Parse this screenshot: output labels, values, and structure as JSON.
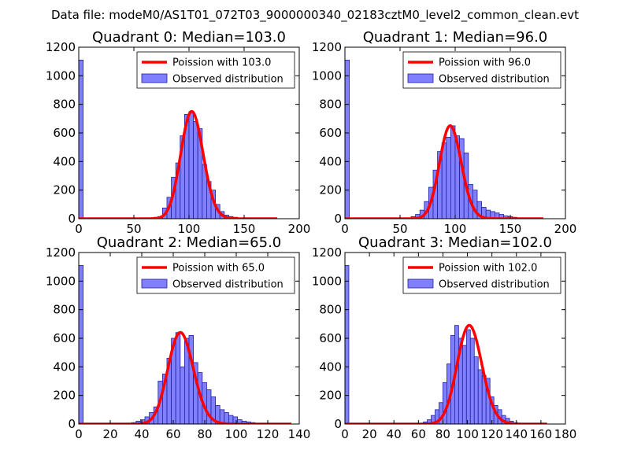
{
  "suptitle": "Data file: modeM0/AS1T01_072T03_9000000340_02183cztM0_level2_common_clean.evt",
  "colors": {
    "bar_fill": "#8080ff",
    "bar_edge": "#2020a0",
    "fit_line": "#ff0000"
  },
  "chart_data": [
    {
      "type": "bar",
      "title": "Quadrant 0: Median=103.0",
      "xlim": [
        0,
        200
      ],
      "ylim": [
        0,
        1200
      ],
      "xticks": [
        0,
        50,
        100,
        150,
        200
      ],
      "yticks": [
        0,
        200,
        400,
        600,
        800,
        1000,
        1200
      ],
      "legend_position": "upper right",
      "fit_label": "Poission with 103.0",
      "hist_label": "Observed distribution",
      "median": 103.0,
      "bin_width": 4,
      "bins": [
        [
          0,
          1110
        ],
        [
          64,
          5
        ],
        [
          68,
          10
        ],
        [
          72,
          15
        ],
        [
          76,
          75
        ],
        [
          80,
          150
        ],
        [
          84,
          290
        ],
        [
          88,
          390
        ],
        [
          92,
          580
        ],
        [
          96,
          730
        ],
        [
          100,
          750
        ],
        [
          104,
          680
        ],
        [
          108,
          630
        ],
        [
          112,
          380
        ],
        [
          116,
          260
        ],
        [
          120,
          200
        ],
        [
          124,
          100
        ],
        [
          128,
          50
        ],
        [
          132,
          25
        ],
        [
          136,
          15
        ],
        [
          140,
          10
        ],
        [
          144,
          5
        ],
        [
          148,
          3
        ]
      ],
      "fit_x_range": [
        0,
        180
      ]
    },
    {
      "type": "bar",
      "title": "Quadrant 1: Median=96.0",
      "xlim": [
        0,
        200
      ],
      "ylim": [
        0,
        1200
      ],
      "xticks": [
        0,
        50,
        100,
        150,
        200
      ],
      "yticks": [
        0,
        200,
        400,
        600,
        800,
        1000,
        1200
      ],
      "legend_position": "upper right",
      "fit_label": "Poission with 96.0",
      "hist_label": "Observed distribution",
      "median": 96.0,
      "bin_width": 4,
      "bins": [
        [
          0,
          1110
        ],
        [
          56,
          5
        ],
        [
          60,
          15
        ],
        [
          64,
          30
        ],
        [
          68,
          60
        ],
        [
          72,
          120
        ],
        [
          76,
          220
        ],
        [
          80,
          340
        ],
        [
          84,
          470
        ],
        [
          88,
          530
        ],
        [
          92,
          570
        ],
        [
          96,
          650
        ],
        [
          100,
          580
        ],
        [
          104,
          560
        ],
        [
          108,
          460
        ],
        [
          112,
          240
        ],
        [
          116,
          200
        ],
        [
          120,
          120
        ],
        [
          124,
          80
        ],
        [
          128,
          60
        ],
        [
          132,
          50
        ],
        [
          136,
          40
        ],
        [
          140,
          30
        ],
        [
          144,
          20
        ],
        [
          148,
          15
        ],
        [
          152,
          10
        ],
        [
          156,
          5
        ]
      ],
      "fit_x_range": [
        0,
        180
      ]
    },
    {
      "type": "bar",
      "title": "Quadrant 2: Median=65.0",
      "xlim": [
        0,
        140
      ],
      "ylim": [
        0,
        1200
      ],
      "xticks": [
        0,
        20,
        40,
        60,
        80,
        100,
        120,
        140
      ],
      "yticks": [
        0,
        200,
        400,
        600,
        800,
        1000,
        1200
      ],
      "legend_position": "upper right",
      "fit_label": "Poission with 65.0",
      "hist_label": "Observed distribution",
      "median": 65.0,
      "bin_width": 2.8,
      "bins": [
        [
          0,
          1110
        ],
        [
          33.6,
          10
        ],
        [
          36.4,
          20
        ],
        [
          39.2,
          30
        ],
        [
          42,
          50
        ],
        [
          44.8,
          80
        ],
        [
          47.6,
          120
        ],
        [
          50.4,
          300
        ],
        [
          53.2,
          350
        ],
        [
          56,
          460
        ],
        [
          58.8,
          600
        ],
        [
          61.6,
          640
        ],
        [
          64.4,
          400
        ],
        [
          67.2,
          600
        ],
        [
          70,
          620
        ],
        [
          72.8,
          430
        ],
        [
          75.6,
          360
        ],
        [
          78.4,
          290
        ],
        [
          81.2,
          240
        ],
        [
          84,
          190
        ],
        [
          86.8,
          130
        ],
        [
          89.6,
          100
        ],
        [
          92.4,
          80
        ],
        [
          95.2,
          60
        ],
        [
          98,
          50
        ],
        [
          100.8,
          30
        ],
        [
          103.6,
          20
        ],
        [
          106.4,
          15
        ],
        [
          109.2,
          10
        ],
        [
          112,
          5
        ]
      ],
      "fit_x_range": [
        0,
        135
      ]
    },
    {
      "type": "bar",
      "title": "Quadrant 3: Median=102.0",
      "xlim": [
        0,
        180
      ],
      "ylim": [
        0,
        1200
      ],
      "xticks": [
        0,
        20,
        40,
        60,
        80,
        100,
        120,
        140,
        160,
        180
      ],
      "yticks": [
        0,
        200,
        400,
        600,
        800,
        1000,
        1200
      ],
      "legend_position": "upper right",
      "fit_label": "Poission with 102.0",
      "hist_label": "Observed distribution",
      "median": 102.0,
      "bin_width": 3.2,
      "bins": [
        [
          0,
          1110
        ],
        [
          60.8,
          5
        ],
        [
          64,
          15
        ],
        [
          67.2,
          30
        ],
        [
          70.4,
          60
        ],
        [
          73.6,
          100
        ],
        [
          76.8,
          150
        ],
        [
          80,
          290
        ],
        [
          83.2,
          420
        ],
        [
          86.4,
          620
        ],
        [
          89.6,
          690
        ],
        [
          92.8,
          600
        ],
        [
          96,
          550
        ],
        [
          99.2,
          660
        ],
        [
          102.4,
          600
        ],
        [
          105.6,
          470
        ],
        [
          108.8,
          380
        ],
        [
          112,
          340
        ],
        [
          115.2,
          320
        ],
        [
          118.4,
          190
        ],
        [
          121.6,
          130
        ],
        [
          124.8,
          100
        ],
        [
          128,
          60
        ],
        [
          131.2,
          40
        ],
        [
          134.4,
          20
        ],
        [
          137.6,
          10
        ],
        [
          140.8,
          5
        ]
      ],
      "fit_x_range": [
        0,
        165
      ]
    }
  ]
}
